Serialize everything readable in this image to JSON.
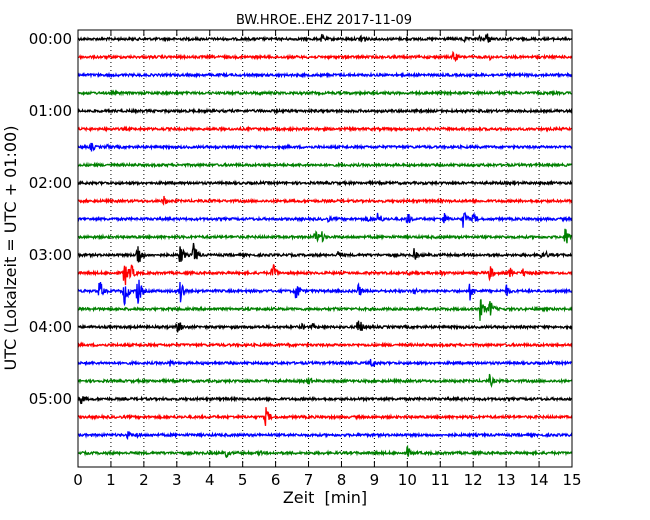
{
  "chart_data": {
    "type": "line",
    "title": "BW.HROE..EHZ 2017-11-09",
    "xlabel": "Zeit  [min]",
    "ylabel": "UTC (Lokalzeit = UTC + 01:00)",
    "xlim": [
      0,
      15
    ],
    "x_ticks": [
      "0",
      "1",
      "2",
      "3",
      "4",
      "5",
      "6",
      "7",
      "8",
      "9",
      "10",
      "11",
      "12",
      "13",
      "14",
      "15"
    ],
    "y_ticks": [
      "00:00",
      "01:00",
      "02:00",
      "03:00",
      "04:00",
      "05:00"
    ],
    "trace_interval_min": 15,
    "trace_colors": [
      "#000000",
      "#ff0000",
      "#0000ff",
      "#008000"
    ],
    "grid": "vertical dotted lines at each minute",
    "traces": [
      {
        "start": "00:00",
        "events": [
          [
            7.4,
            0.3
          ],
          [
            8.6,
            0.45
          ],
          [
            11.7,
            0.25
          ],
          [
            12.2,
            0.2
          ],
          [
            12.4,
            0.45
          ]
        ]
      },
      {
        "start": "00:15",
        "events": [
          [
            11.4,
            0.45
          ],
          [
            12.5,
            0.2
          ]
        ]
      },
      {
        "start": "00:30",
        "events": []
      },
      {
        "start": "00:45",
        "events": [
          [
            5.5,
            0.15
          ]
        ]
      },
      {
        "start": "01:00",
        "events": []
      },
      {
        "start": "01:15",
        "events": []
      },
      {
        "start": "01:30",
        "events": [
          [
            0.4,
            0.3
          ],
          [
            0.9,
            0.2
          ]
        ]
      },
      {
        "start": "01:45",
        "events": [
          [
            6.5,
            0.1
          ]
        ]
      },
      {
        "start": "02:00",
        "events": []
      },
      {
        "start": "02:15",
        "events": [
          [
            2.6,
            0.35
          ],
          [
            4.0,
            0.15
          ]
        ]
      },
      {
        "start": "02:30",
        "events": [
          [
            7.6,
            0.2
          ],
          [
            8.8,
            0.2
          ],
          [
            9.1,
            0.5
          ],
          [
            10.0,
            0.45
          ],
          [
            11.1,
            0.45
          ],
          [
            11.7,
            0.65
          ],
          [
            12.0,
            0.4
          ]
        ]
      },
      {
        "start": "02:45",
        "events": [
          [
            7.2,
            0.55
          ],
          [
            7.4,
            0.35
          ],
          [
            14.8,
            0.7
          ]
        ]
      },
      {
        "start": "03:00",
        "events": [
          [
            1.8,
            0.9
          ],
          [
            3.1,
            0.7
          ],
          [
            3.5,
            0.8
          ],
          [
            7.9,
            0.3
          ],
          [
            10.2,
            0.4
          ],
          [
            14.0,
            0.3
          ],
          [
            14.2,
            0.25
          ]
        ]
      },
      {
        "start": "03:15",
        "events": [
          [
            1.4,
            1.0
          ],
          [
            1.6,
            0.6
          ],
          [
            5.9,
            0.7
          ],
          [
            10.0,
            0.25
          ],
          [
            11.0,
            0.25
          ],
          [
            12.5,
            0.5
          ],
          [
            13.1,
            0.4
          ],
          [
            13.5,
            0.3
          ]
        ]
      },
      {
        "start": "03:30",
        "events": [
          [
            0.65,
            0.7
          ],
          [
            1.4,
            0.9
          ],
          [
            1.8,
            1.0
          ],
          [
            3.1,
            0.9
          ],
          [
            6.6,
            0.7
          ],
          [
            8.5,
            0.5
          ],
          [
            10.2,
            0.3
          ],
          [
            11.9,
            0.55
          ],
          [
            13.0,
            0.4
          ]
        ]
      },
      {
        "start": "03:45",
        "events": [
          [
            7.8,
            0.15
          ],
          [
            12.2,
            0.75
          ],
          [
            12.5,
            0.6
          ]
        ]
      },
      {
        "start": "04:00",
        "events": [
          [
            3.0,
            0.4
          ],
          [
            3.1,
            0.3
          ],
          [
            6.8,
            0.2
          ],
          [
            7.1,
            0.25
          ],
          [
            8.5,
            0.7
          ]
        ]
      },
      {
        "start": "04:15",
        "events": [
          [
            6.4,
            0.2
          ]
        ]
      },
      {
        "start": "04:30",
        "events": [
          [
            2.8,
            0.25
          ],
          [
            8.9,
            0.4
          ]
        ]
      },
      {
        "start": "04:45",
        "events": [
          [
            7.0,
            0.3
          ],
          [
            12.5,
            0.45
          ]
        ]
      },
      {
        "start": "05:00",
        "events": [
          [
            0.1,
            0.35
          ]
        ]
      },
      {
        "start": "05:15",
        "events": [
          [
            5.7,
            0.6
          ]
        ]
      },
      {
        "start": "05:30",
        "events": [
          [
            1.5,
            0.25
          ],
          [
            1.8,
            0.2
          ]
        ]
      },
      {
        "start": "05:45",
        "events": [
          [
            4.5,
            0.3
          ],
          [
            5.5,
            0.2
          ],
          [
            10.0,
            0.4
          ]
        ]
      }
    ]
  }
}
